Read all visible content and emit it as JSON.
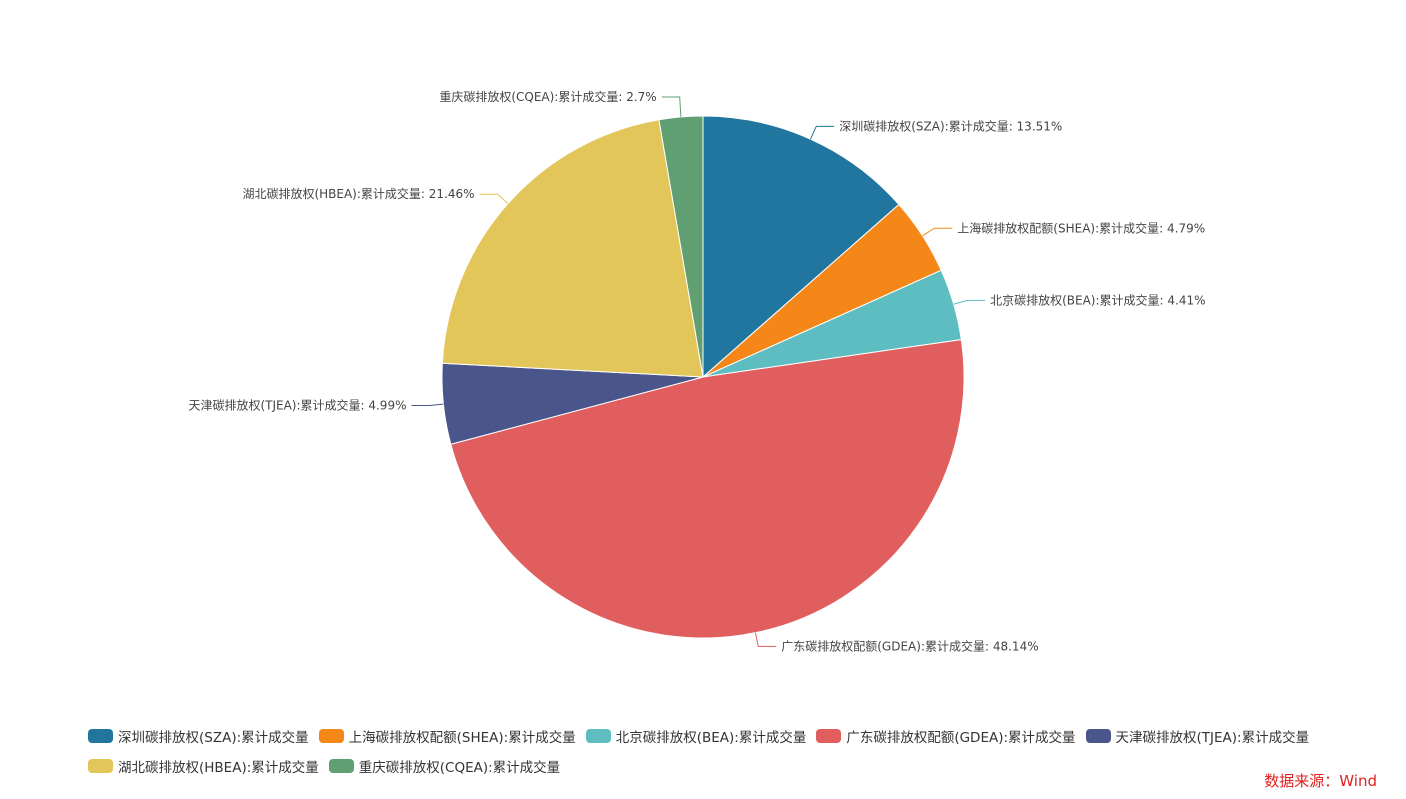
{
  "chart_data": {
    "type": "pie",
    "title": "",
    "start_angle": "top, clockwise",
    "label_suffix": ":累计成交量",
    "slices": [
      {
        "name": "深圳碳排放权(SZA)",
        "value": 13.51,
        "color": "#21769f"
      },
      {
        "name": "上海碳排放权配额(SHEA)",
        "value": 4.79,
        "color": "#f58719"
      },
      {
        "name": "北京碳排放权(BEA)",
        "value": 4.41,
        "color": "#5dbdc0"
      },
      {
        "name": "广东碳排放权配额(GDEA)",
        "value": 48.14,
        "color": "#e05e5e"
      },
      {
        "name": "天津碳排放权(TJEA)",
        "value": 4.99,
        "color": "#4a568b"
      },
      {
        "name": "湖北碳排放权(HBEA)",
        "value": 21.46,
        "color": "#e3c65a"
      },
      {
        "name": "重庆碳排放权(CQEA)",
        "value": 2.7,
        "color": "#5f9f71"
      }
    ],
    "legend_position": "bottom-left"
  },
  "legend": {
    "items": [
      "深圳碳排放权(SZA):累计成交量",
      "上海碳排放权配额(SHEA):累计成交量",
      "北京碳排放权(BEA):累计成交量",
      "广东碳排放权配额(GDEA):累计成交量",
      "天津碳排放权(TJEA):累计成交量",
      "湖北碳排放权(HBEA):累计成交量",
      "重庆碳排放权(CQEA):累计成交量"
    ]
  },
  "source": "数据来源：Wind"
}
